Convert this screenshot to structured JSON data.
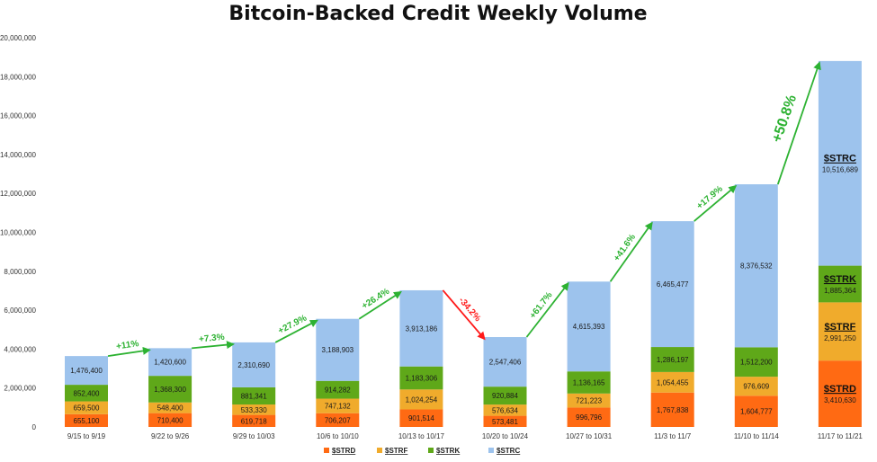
{
  "chart_data": {
    "type": "bar",
    "stacked": true,
    "title": "Bitcoin-Backed Credit Weekly Volume",
    "xlabel": "",
    "ylabel": "",
    "ylim": [
      0,
      20000000
    ],
    "yticks": [
      0,
      2000000,
      4000000,
      6000000,
      8000000,
      10000000,
      12000000,
      14000000,
      16000000,
      18000000,
      20000000
    ],
    "ytick_labels": [
      "0",
      "2,000,000",
      "4,000,000",
      "6,000,000",
      "8,000,000",
      "10,000,000",
      "12,000,000",
      "14,000,000",
      "16,000,000",
      "18,000,000",
      "20,000,000"
    ],
    "grid": false,
    "legend": "bottom",
    "categories": [
      "9/15 to 9/19",
      "9/22 to 9/26",
      "9/29 to 10/03",
      "10/6 to 10/10",
      "10/13 to 10/17",
      "10/20 to 10/24",
      "10/27 to 10/31",
      "11/3 to 11/7",
      "11/10 to 11/14",
      "11/17 to 11/21"
    ],
    "series": [
      {
        "name": "$STRD",
        "color": "#ff6a13",
        "values": [
          655100,
          710400,
          619718,
          706207,
          901514,
          573481,
          996796,
          1767838,
          1604777,
          3410630
        ],
        "labels": [
          "655,100",
          "710,400",
          "619,718",
          "706,207",
          "901,514",
          "573,481",
          "996,796",
          "1,767,838",
          "1,604,777",
          "3,410,630"
        ]
      },
      {
        "name": "$STRF",
        "color": "#f0ab2c",
        "values": [
          659500,
          548400,
          533330,
          747132,
          1024254,
          576634,
          721223,
          1054455,
          976609,
          2991250
        ],
        "labels": [
          "659,500",
          "548,400",
          "533,330",
          "747,132",
          "1,024,254",
          "576,634",
          "721,223",
          "1,054,455",
          "976,609",
          "2,991,250"
        ]
      },
      {
        "name": "$STRK",
        "color": "#5fa819",
        "values": [
          852400,
          1368300,
          881341,
          914282,
          1183306,
          920884,
          1136165,
          1286197,
          1512200,
          1885364
        ],
        "labels": [
          "852,400",
          "1,368,300",
          "881,341",
          "914,282",
          "1,183,306",
          "920,884",
          "1,136,165",
          "1,286,197",
          "1,512,200",
          "1,885,364"
        ]
      },
      {
        "name": "$STRC",
        "color": "#9dc3ed",
        "values": [
          1476400,
          1420600,
          2310690,
          3188903,
          3913186,
          2547406,
          4615393,
          6465477,
          8376532,
          10516689
        ],
        "labels": [
          "1,476,400",
          "1,420,600",
          "2,310,690",
          "3,188,903",
          "3,913,186",
          "2,547,406",
          "4,615,393",
          "6,465,477",
          "8,376,532",
          "10,516,689"
        ]
      }
    ],
    "annotations": [
      {
        "text": "+11%",
        "color": "#2db232"
      },
      {
        "text": "+7.3%",
        "color": "#2db232"
      },
      {
        "text": "+27.9%",
        "color": "#2db232"
      },
      {
        "text": "+26.4%",
        "color": "#2db232"
      },
      {
        "text": "-34.2%",
        "color": "#ff1a1a"
      },
      {
        "text": "+61.7%",
        "color": "#2db232"
      },
      {
        "text": "+41.6%",
        "color": "#2db232"
      },
      {
        "text": "+17.9%",
        "color": "#2db232"
      },
      {
        "text": "+50.8%",
        "color": "#2db232"
      }
    ],
    "highlight_labels": [
      "$STRD",
      "$STRF",
      "$STRK",
      "$STRC"
    ]
  }
}
